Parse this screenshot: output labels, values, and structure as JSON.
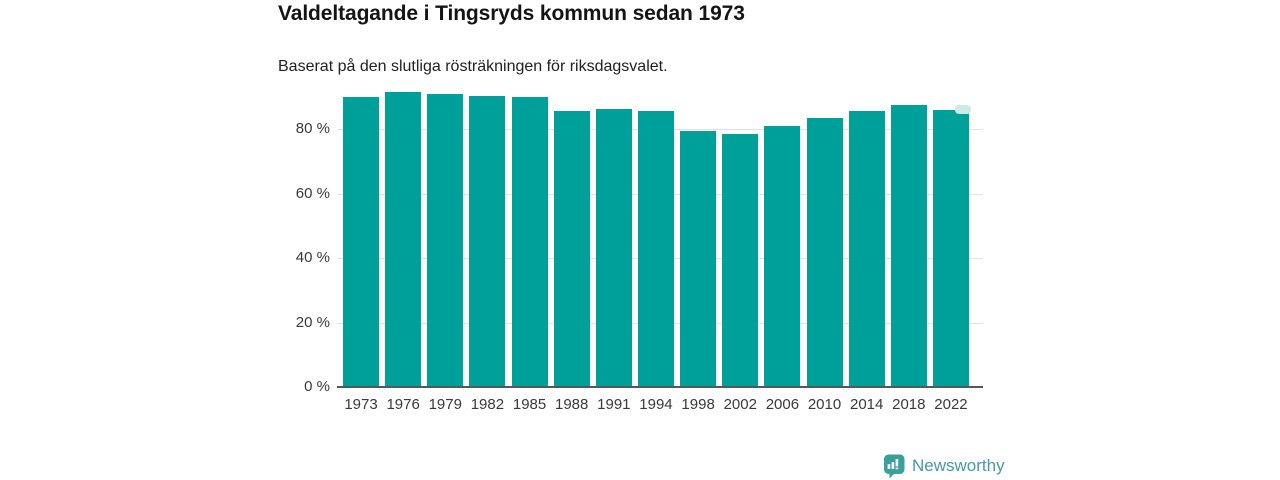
{
  "title": "Valdeltagande i Tingsryds kommun sedan 1973",
  "subtitle": "Baserat på den slutliga rösträkningen för riksdagsvalet.",
  "chart_data": {
    "type": "bar",
    "title": "Valdeltagande i Tingsryds kommun sedan 1973",
    "subtitle": "Baserat på den slutliga rösträkningen för riksdagsvalet.",
    "categories": [
      "1973",
      "1976",
      "1979",
      "1982",
      "1985",
      "1988",
      "1991",
      "1994",
      "1998",
      "2002",
      "2006",
      "2010",
      "2014",
      "2018",
      "2022"
    ],
    "values": [
      89.9,
      91.5,
      90.9,
      90.2,
      89.8,
      85.6,
      86.2,
      85.5,
      79.3,
      78.5,
      80.9,
      83.3,
      85.5,
      87.4,
      85.9
    ],
    "unit": "%",
    "xlabel": "",
    "ylabel": "",
    "ylim": [
      0,
      100
    ],
    "ytick_values": [
      0,
      20,
      40,
      60,
      80
    ],
    "ytick_labels": [
      "0 %",
      "20 %",
      "40 %",
      "60 %",
      "80 %"
    ],
    "grid_values": [
      20,
      40,
      60,
      80
    ],
    "grid": "horizontal-only",
    "legend": "none",
    "bar_color": "#00a09a",
    "latest_marker_color": "#cdeae7",
    "gridline_color": "#e2e2e2",
    "axis_line_color": "#54585b"
  },
  "footer": {
    "brand": "Newsworthy",
    "brand_color": "#4b99a1",
    "badge_color": "#3aa09c",
    "logo_icon": "newsworthy-badge-chart-icon"
  }
}
